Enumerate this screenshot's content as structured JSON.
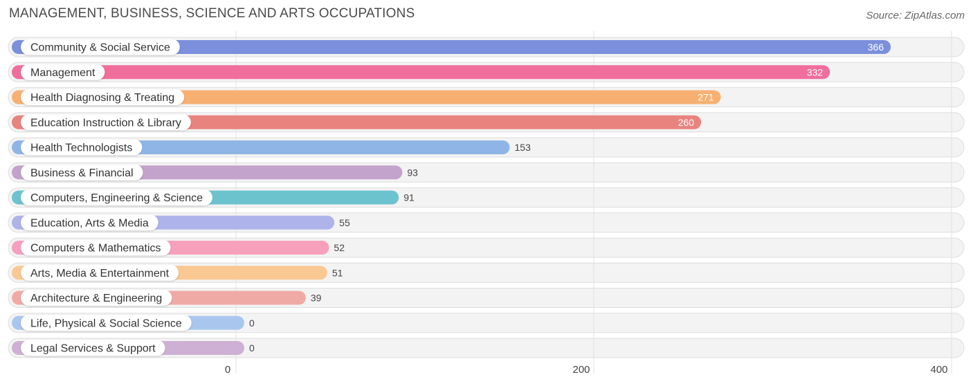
{
  "header": {
    "title": "MANAGEMENT, BUSINESS, SCIENCE AND ARTS OCCUPATIONS",
    "source": "Source: ZipAtlas.com"
  },
  "chart_data": {
    "type": "bar",
    "orientation": "horizontal",
    "title": "MANAGEMENT, BUSINESS, SCIENCE AND ARTS OCCUPATIONS",
    "xlim": [
      0,
      400
    ],
    "x_ticks": [
      0,
      200,
      400
    ],
    "grid": true,
    "categories": [
      "Community & Social Service",
      "Management",
      "Health Diagnosing & Treating",
      "Education Instruction & Library",
      "Health Technologists",
      "Business & Financial",
      "Computers, Engineering & Science",
      "Education, Arts & Media",
      "Computers & Mathematics",
      "Arts, Media & Entertainment",
      "Architecture & Engineering",
      "Life, Physical & Social Science",
      "Legal Services & Support"
    ],
    "values": [
      366,
      332,
      271,
      260,
      153,
      93,
      91,
      55,
      52,
      51,
      39,
      0,
      0
    ],
    "colors": [
      "#7b8fdc",
      "#f06e9b",
      "#f7b072",
      "#e8837e",
      "#8fb5e6",
      "#c3a2cc",
      "#6cc3ce",
      "#aeb4ea",
      "#f7a0bc",
      "#f9c893",
      "#f0aaa6",
      "#a9c7ee",
      "#cdb0d4"
    ]
  }
}
